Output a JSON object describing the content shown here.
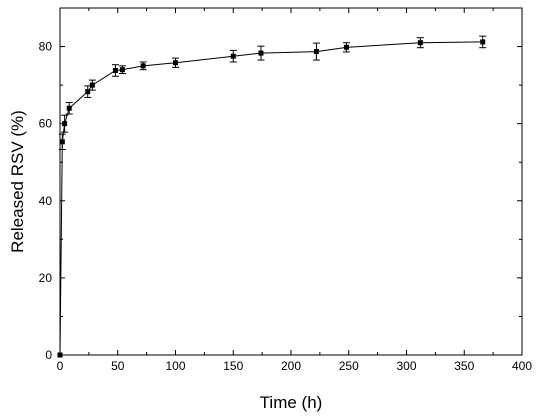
{
  "chart_data": {
    "type": "line",
    "title": "",
    "xlabel": "Time (h)",
    "ylabel": "Released RSV (%)",
    "xlim": [
      0,
      400
    ],
    "ylim": [
      0,
      90
    ],
    "xticks": [
      0,
      50,
      100,
      150,
      200,
      250,
      300,
      350,
      400
    ],
    "yticks": [
      0,
      20,
      40,
      60,
      80
    ],
    "grid": false,
    "legend": "none",
    "marker": "square",
    "color": "#000000",
    "series": [
      {
        "x": [
          0,
          2,
          4,
          8,
          24,
          28,
          48,
          54,
          72,
          100,
          150,
          174,
          222,
          248,
          312,
          366
        ],
        "y": [
          0,
          55.3,
          60.0,
          64.0,
          68.3,
          70.0,
          73.8,
          74.0,
          75.0,
          75.8,
          77.5,
          78.3,
          78.7,
          79.8,
          81.0,
          81.2
        ],
        "error": [
          0,
          2.0,
          2.2,
          1.5,
          1.5,
          1.3,
          1.5,
          1.0,
          1.0,
          1.2,
          1.5,
          1.8,
          2.2,
          1.2,
          1.3,
          1.5
        ]
      }
    ]
  }
}
